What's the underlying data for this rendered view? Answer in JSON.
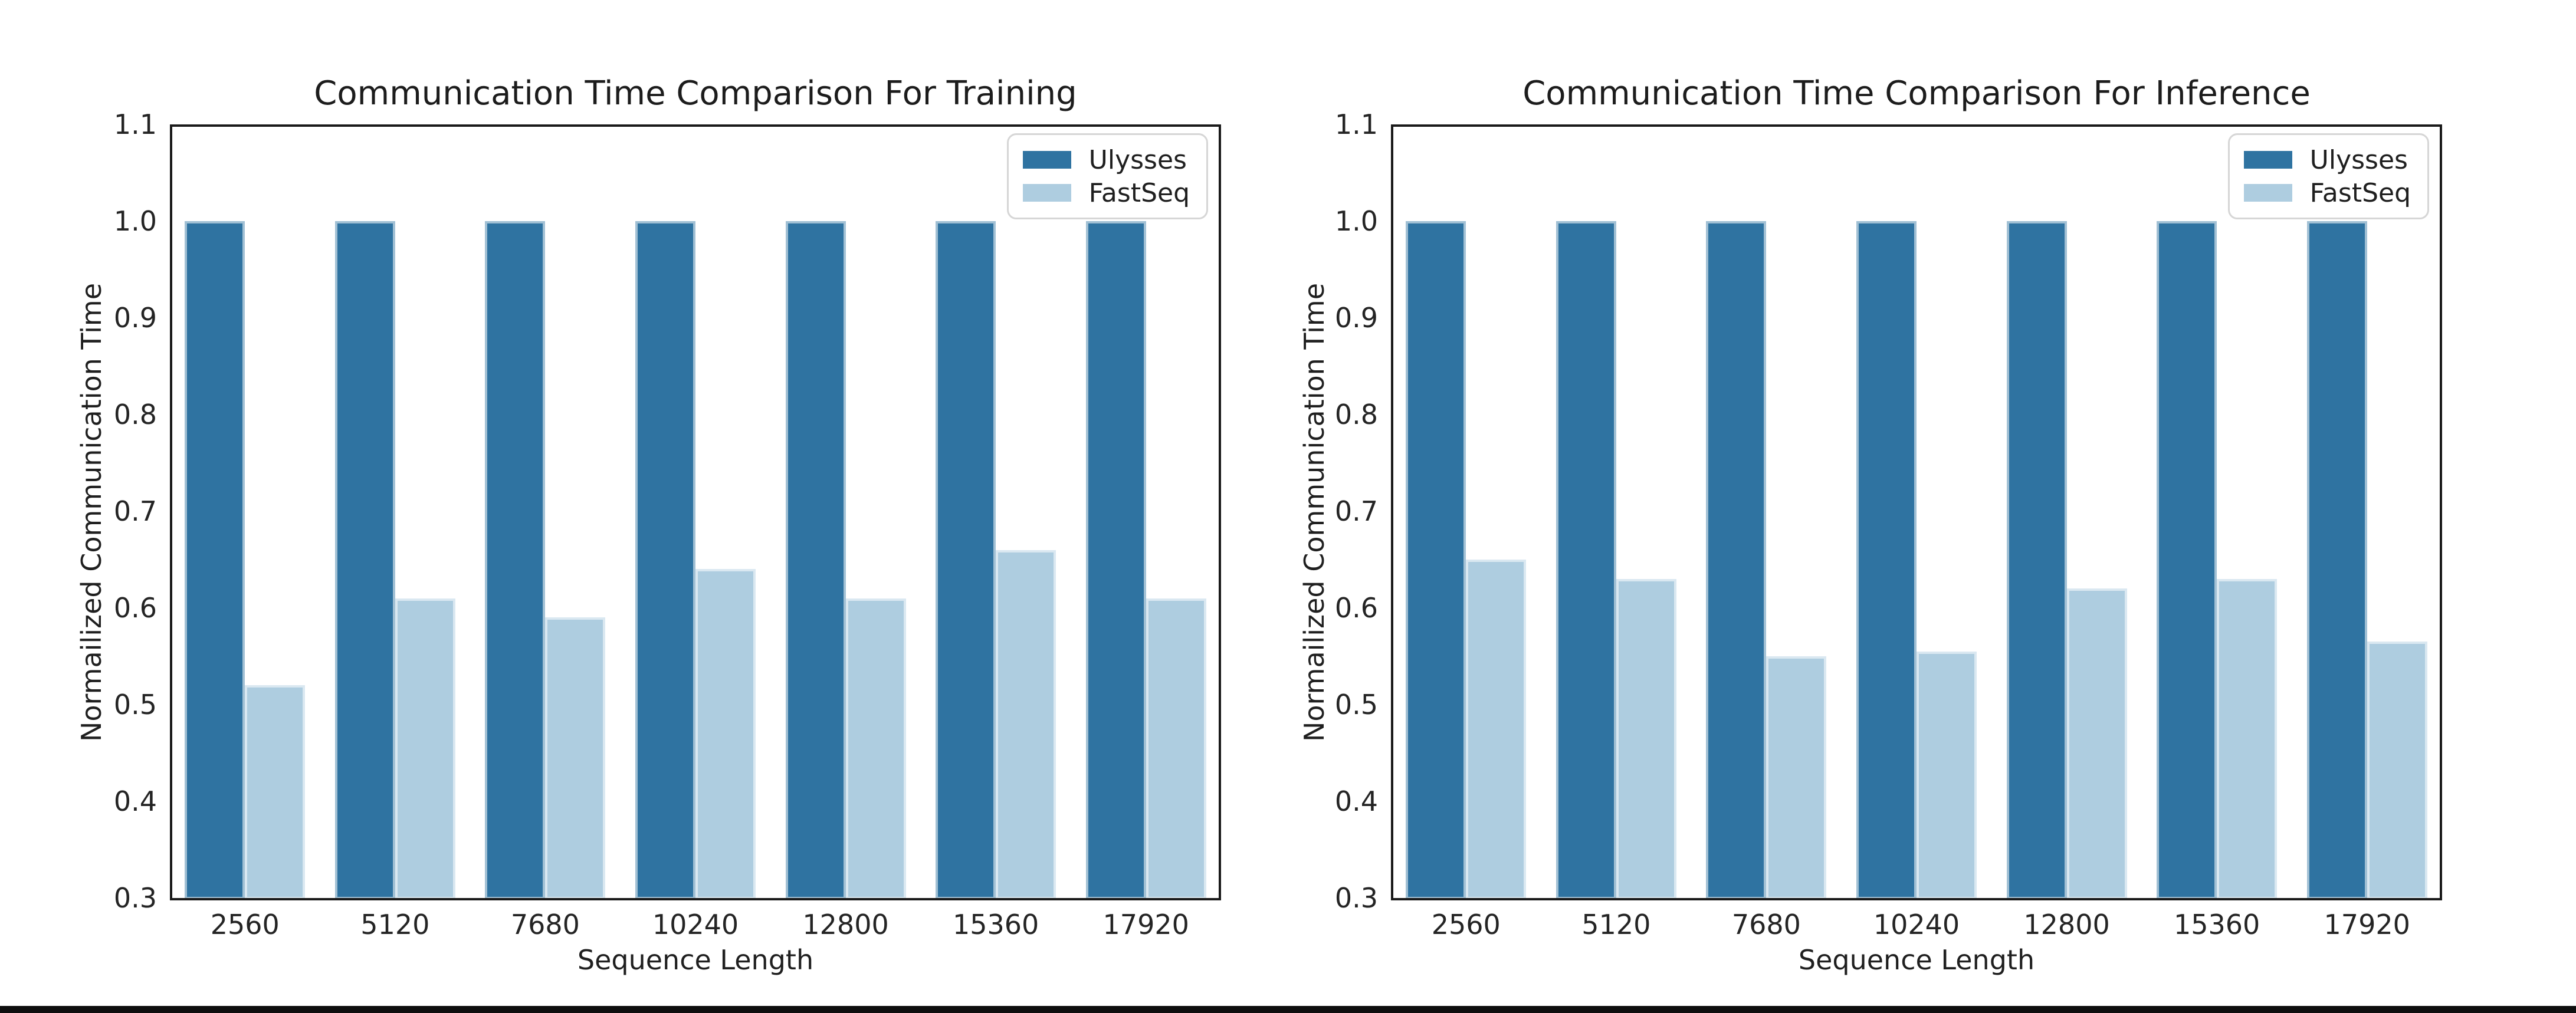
{
  "page": {
    "background": "#ffffff",
    "bottom_strip_color": "#0e0e0e"
  },
  "chart_data": [
    {
      "type": "bar",
      "title": "Communication Time Comparison For Training",
      "xlabel": "Sequence Length",
      "ylabel": "Normailized Communication Time",
      "categories": [
        "2560",
        "5120",
        "7680",
        "10240",
        "12800",
        "15360",
        "17920"
      ],
      "series": [
        {
          "name": "Ulysses",
          "color": "#2f73a1",
          "values": [
            1.0,
            1.0,
            1.0,
            1.0,
            1.0,
            1.0,
            1.0
          ]
        },
        {
          "name": "FastSeq",
          "color": "#aecde0",
          "values": [
            0.52,
            0.61,
            0.59,
            0.64,
            0.61,
            0.66,
            0.61
          ]
        }
      ],
      "ylim": [
        0.3,
        1.1
      ],
      "yticks": [
        "0.3",
        "0.4",
        "0.5",
        "0.6",
        "0.7",
        "0.8",
        "0.9",
        "1.0",
        "1.1"
      ],
      "legend_position": "upper right",
      "grid": false
    },
    {
      "type": "bar",
      "title": "Communication Time Comparison For Inference",
      "xlabel": "Sequence Length",
      "ylabel": "Normailized Communication Time",
      "categories": [
        "2560",
        "5120",
        "7680",
        "10240",
        "12800",
        "15360",
        "17920"
      ],
      "series": [
        {
          "name": "Ulysses",
          "color": "#2f73a1",
          "values": [
            1.0,
            1.0,
            1.0,
            1.0,
            1.0,
            1.0,
            1.0
          ]
        },
        {
          "name": "FastSeq",
          "color": "#aecde0",
          "values": [
            0.65,
            0.63,
            0.55,
            0.555,
            0.62,
            0.63,
            0.565
          ]
        }
      ],
      "ylim": [
        0.3,
        1.1
      ],
      "yticks": [
        "0.3",
        "0.4",
        "0.5",
        "0.6",
        "0.7",
        "0.8",
        "0.9",
        "1.0",
        "1.1"
      ],
      "legend_position": "upper right",
      "grid": false
    }
  ]
}
